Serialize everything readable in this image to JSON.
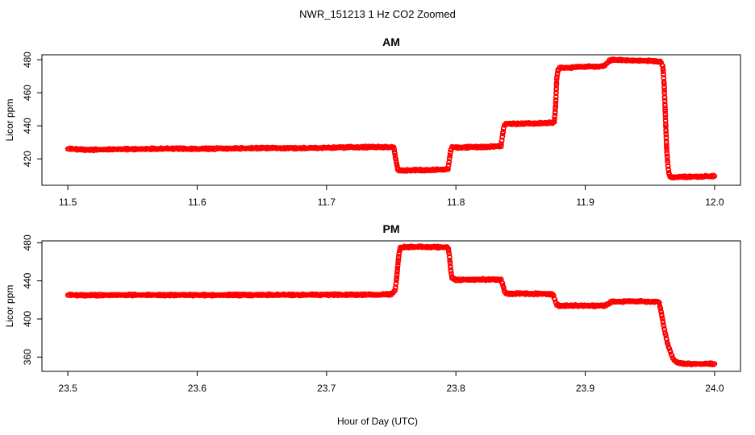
{
  "figure": {
    "suptitle": "NWR_151213  1 Hz CO2 Zoomed",
    "xlabel": "Hour of Day (UTC)",
    "point_color": "#ff0000"
  },
  "chart_data": [
    {
      "type": "scatter",
      "title": "AM",
      "ylabel": "Licor ppm",
      "xlim": [
        11.48,
        12.02
      ],
      "ylim": [
        404,
        483
      ],
      "xticks": [
        11.5,
        11.6,
        11.7,
        11.8,
        11.9,
        12.0
      ],
      "xtick_labels": [
        "11.5",
        "11.6",
        "11.7",
        "11.8",
        "11.9",
        "12.0"
      ],
      "yticks": [
        420,
        440,
        460,
        480
      ],
      "ytick_labels": [
        "420",
        "440",
        "460",
        "480"
      ],
      "series": [
        {
          "x": [
            11.5,
            11.52,
            11.54,
            11.56,
            11.58,
            11.6,
            11.62,
            11.64,
            11.66,
            11.68,
            11.7,
            11.72,
            11.74,
            11.752,
            11.753,
            11.754,
            11.755,
            11.756,
            11.76,
            11.77,
            11.78,
            11.79,
            11.794,
            11.795,
            11.796,
            11.797,
            11.8,
            11.81,
            11.82,
            11.83,
            11.835,
            11.836,
            11.837,
            11.838,
            11.84,
            11.85,
            11.86,
            11.87,
            11.876,
            11.877,
            11.878,
            11.879,
            11.88,
            11.89,
            11.9,
            11.91,
            11.915,
            11.918,
            11.92,
            11.93,
            11.94,
            11.95,
            11.958,
            11.96,
            11.961,
            11.962,
            11.963,
            11.964,
            11.965,
            11.966,
            11.97,
            11.98,
            11.99,
            12.0
          ],
          "y": [
            426,
            425.5,
            425.8,
            426,
            426.2,
            426,
            426.3,
            426.4,
            426.5,
            426.4,
            426.7,
            427,
            427.2,
            427,
            422,
            418,
            414,
            413,
            413,
            413.2,
            413.3,
            413.5,
            414,
            420,
            425,
            427,
            427,
            427,
            427.2,
            427.5,
            428,
            434,
            439,
            441,
            441.2,
            441.3,
            441.5,
            441.8,
            442,
            451,
            469,
            474,
            475,
            475.3,
            475.8,
            476,
            476.5,
            479,
            480,
            479.8,
            479.5,
            479.3,
            479,
            476,
            465,
            445,
            425,
            415,
            410,
            409,
            409,
            409.2,
            409.3,
            409.5
          ]
        }
      ]
    },
    {
      "type": "scatter",
      "title": "PM",
      "ylabel": "Licor ppm",
      "xlim": [
        23.48,
        24.02
      ],
      "ylim": [
        345,
        482
      ],
      "xticks": [
        23.5,
        23.6,
        23.7,
        23.8,
        23.9,
        24.0
      ],
      "xtick_labels": [
        "23.5",
        "23.6",
        "23.7",
        "23.8",
        "23.9",
        "24.0"
      ],
      "yticks": [
        360,
        400,
        440,
        480
      ],
      "ytick_labels": [
        "360",
        "400",
        "440",
        "480"
      ],
      "series": [
        {
          "x": [
            23.5,
            23.55,
            23.6,
            23.65,
            23.7,
            23.74,
            23.75,
            23.753,
            23.754,
            23.755,
            23.756,
            23.757,
            23.76,
            23.77,
            23.78,
            23.79,
            23.794,
            23.795,
            23.796,
            23.797,
            23.8,
            23.81,
            23.82,
            23.83,
            23.835,
            23.836,
            23.837,
            23.838,
            23.84,
            23.85,
            23.86,
            23.87,
            23.875,
            23.876,
            23.877,
            23.878,
            23.88,
            23.89,
            23.9,
            23.91,
            23.915,
            23.918,
            23.92,
            23.93,
            23.94,
            23.95,
            23.955,
            23.957,
            23.958,
            23.959,
            23.96,
            23.961,
            23.962,
            23.963,
            23.964,
            23.966,
            23.968,
            23.97,
            23.975,
            23.98,
            23.99,
            24.0
          ],
          "y": [
            425,
            425.2,
            425,
            425.3,
            425.4,
            425.5,
            426,
            430,
            440,
            455,
            468,
            475,
            475.5,
            475.7,
            475.6,
            475.5,
            475,
            466,
            452,
            443,
            441,
            441.3,
            441.5,
            441.2,
            441,
            437,
            432,
            427,
            426.5,
            426.8,
            426.5,
            426.3,
            426,
            422,
            418,
            415,
            414,
            414.2,
            414,
            413.8,
            414,
            416,
            418,
            418.3,
            418.5,
            418.4,
            418.3,
            418,
            412,
            405,
            398,
            390,
            384,
            378,
            372,
            365,
            358,
            355,
            353,
            353,
            353,
            353
          ]
        }
      ]
    }
  ]
}
